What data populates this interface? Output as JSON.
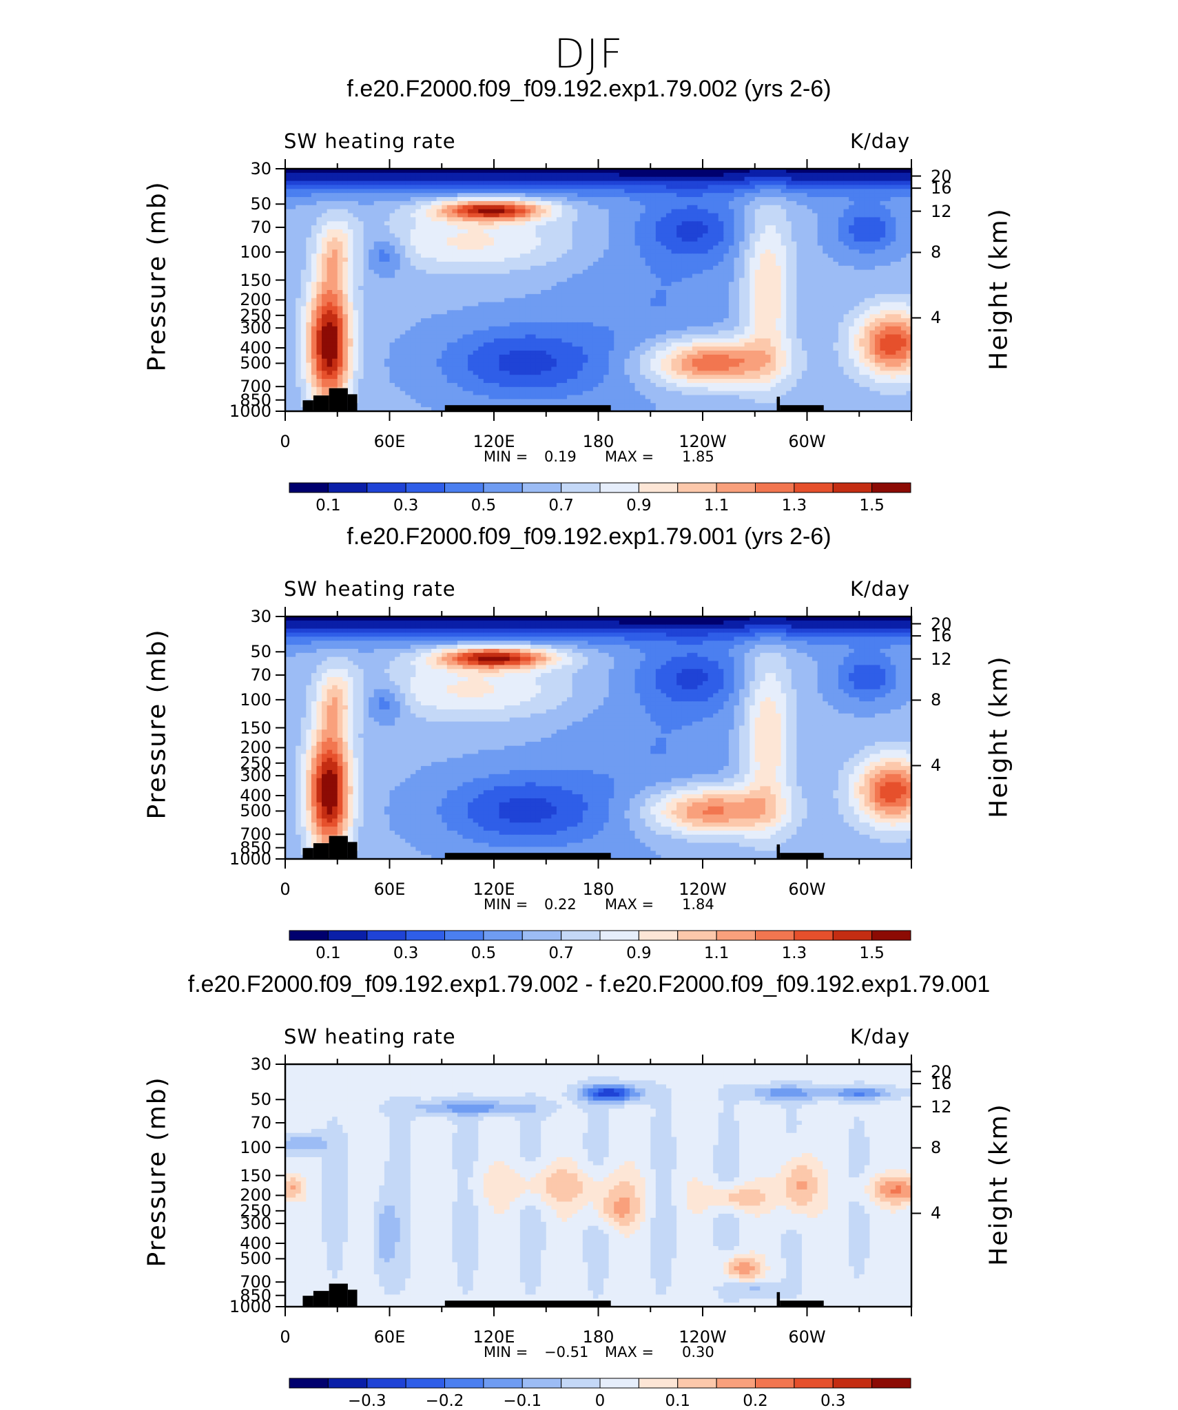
{
  "figure_title": "DJF",
  "chart_data": [
    {
      "type": "heatmap",
      "title": "f.e20.F2000.f09_f09.192.exp1.79.002 (yrs 2-6)",
      "left_label": "SW heating rate",
      "right_label": "K/day",
      "ylabel": "Pressure (mb)",
      "ylabel_right": "Height (km)",
      "x_ticks": [
        "0",
        "60E",
        "120E",
        "180",
        "120W",
        "60W"
      ],
      "pressure_ticks": [
        "30",
        "50",
        "70",
        "100",
        "150",
        "200",
        "250",
        "300",
        "400",
        "500",
        "700",
        "850",
        "1000"
      ],
      "height_ticks": [
        "20",
        "16",
        "12",
        "8",
        "4"
      ],
      "min_label": "MIN =",
      "min_value": "0.19",
      "max_label": "MAX =",
      "max_value": "1.85",
      "colorbar_labels": [
        "0.1",
        "0.3",
        "0.5",
        "0.7",
        "0.9",
        "1.1",
        "1.3",
        "1.5"
      ],
      "colorbar_levels": [
        0.1,
        0.2,
        0.3,
        0.4,
        0.5,
        0.6,
        0.7,
        0.8,
        0.9,
        1.0,
        1.1,
        1.2,
        1.3,
        1.4,
        1.5
      ],
      "field": "absolute"
    },
    {
      "type": "heatmap",
      "title": "f.e20.F2000.f09_f09.192.exp1.79.001 (yrs 2-6)",
      "left_label": "SW heating rate",
      "right_label": "K/day",
      "ylabel": "Pressure (mb)",
      "ylabel_right": "Height (km)",
      "x_ticks": [
        "0",
        "60E",
        "120E",
        "180",
        "120W",
        "60W"
      ],
      "pressure_ticks": [
        "30",
        "50",
        "70",
        "100",
        "150",
        "200",
        "250",
        "300",
        "400",
        "500",
        "700",
        "850",
        "1000"
      ],
      "height_ticks": [
        "20",
        "16",
        "12",
        "8",
        "4"
      ],
      "min_label": "MIN =",
      "min_value": "0.22",
      "max_label": "MAX =",
      "max_value": "1.84",
      "colorbar_labels": [
        "0.1",
        "0.3",
        "0.5",
        "0.7",
        "0.9",
        "1.1",
        "1.3",
        "1.5"
      ],
      "colorbar_levels": [
        0.1,
        0.2,
        0.3,
        0.4,
        0.5,
        0.6,
        0.7,
        0.8,
        0.9,
        1.0,
        1.1,
        1.2,
        1.3,
        1.4,
        1.5
      ],
      "field": "absolute"
    },
    {
      "type": "heatmap",
      "title": "f.e20.F2000.f09_f09.192.exp1.79.002 - f.e20.F2000.f09_f09.192.exp1.79.001",
      "left_label": "SW heating rate",
      "right_label": "K/day",
      "ylabel": "Pressure (mb)",
      "ylabel_right": "Height (km)",
      "x_ticks": [
        "0",
        "60E",
        "120E",
        "180",
        "120W",
        "60W"
      ],
      "pressure_ticks": [
        "30",
        "50",
        "70",
        "100",
        "150",
        "200",
        "250",
        "300",
        "400",
        "500",
        "700",
        "850",
        "1000"
      ],
      "height_ticks": [
        "20",
        "16",
        "12",
        "8",
        "4"
      ],
      "min_label": "MIN =",
      "min_value": "−0.51",
      "max_label": "MAX =",
      "max_value": "0.30",
      "colorbar_labels": [
        "−0.3",
        "−0.2",
        "−0.1",
        "0",
        "0.1",
        "0.2",
        "0.3"
      ],
      "colorbar_levels": [
        -0.35,
        -0.3,
        -0.25,
        -0.2,
        -0.15,
        -0.1,
        -0.05,
        0,
        0.05,
        0.1,
        0.15,
        0.2,
        0.25,
        0.3,
        0.35
      ],
      "field": "difference"
    }
  ],
  "colors": {
    "palette": [
      "#00006e",
      "#0a1fa8",
      "#1f43d6",
      "#2f5ee8",
      "#4b7ff0",
      "#6f9cf2",
      "#9cbcf5",
      "#c4d8f7",
      "#e6eefb",
      "#fde6d6",
      "#fcc8ab",
      "#f9a07c",
      "#f27650",
      "#e6502c",
      "#c42d12",
      "#8c0b04"
    ],
    "topography": "#000000"
  }
}
